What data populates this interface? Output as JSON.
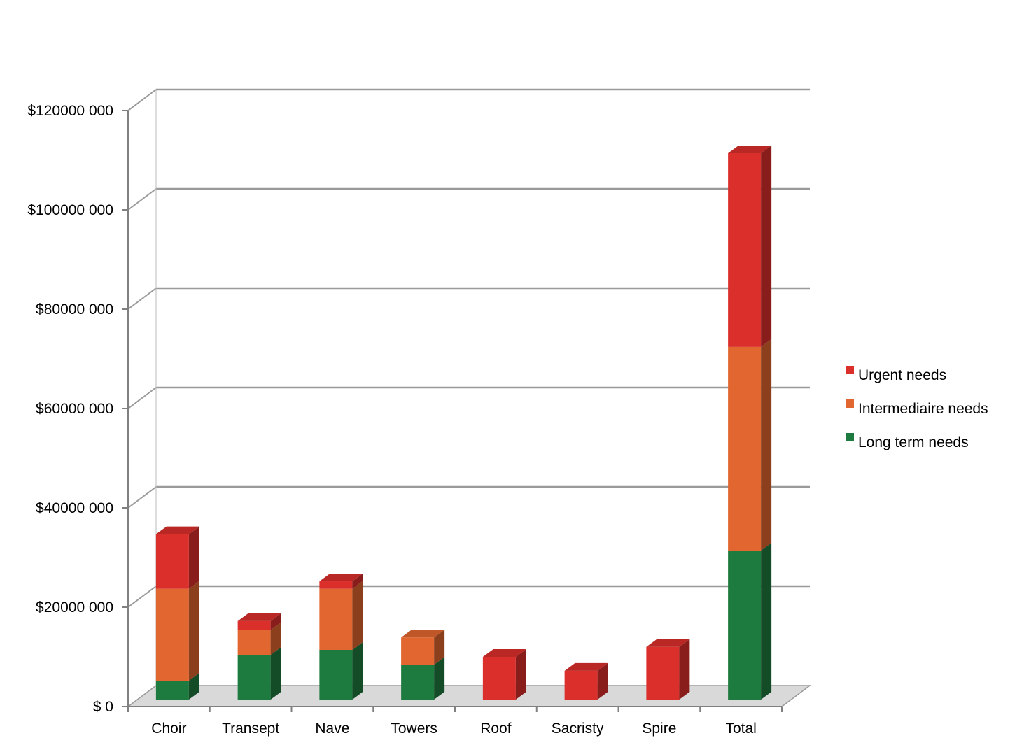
{
  "chart_data": {
    "type": "bar",
    "stacked": true,
    "three_d": true,
    "categories": [
      "Choir",
      "Transept",
      "Nave",
      "Towers",
      "Roof",
      "Sacristy",
      "Spire",
      "Total"
    ],
    "series": [
      {
        "name": "Long term needs",
        "color": "#1e7b3f",
        "values": [
          3800000,
          9000000,
          10000000,
          7000000,
          0,
          0,
          0,
          30000000
        ]
      },
      {
        "name": "Intermediaire needs",
        "color": "#e2662f",
        "values": [
          18500000,
          5000000,
          12300000,
          5500000,
          0,
          0,
          0,
          41000000
        ]
      },
      {
        "name": "Urgent needs",
        "color": "#db2f2c",
        "values": [
          11000000,
          1800000,
          1500000,
          0,
          8600000,
          5800000,
          10600000,
          39000000
        ]
      }
    ],
    "y_ticks": [
      "$ 0",
      "$20000 000",
      "$40000 000",
      "$60000 000",
      "$80000 000",
      "$100000 000",
      "$120000 000"
    ],
    "ylim": [
      0,
      120000000
    ],
    "grid": true,
    "legend": "right",
    "title": "",
    "xlabel": "",
    "ylabel": ""
  }
}
